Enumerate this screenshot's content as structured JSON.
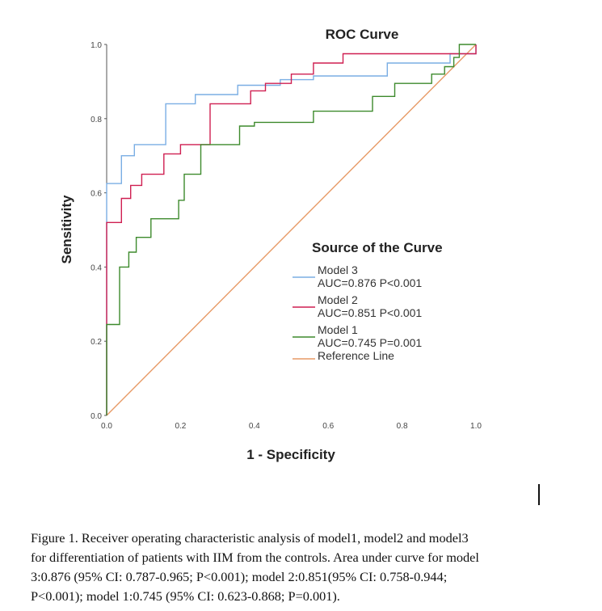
{
  "chart_data": {
    "type": "line",
    "title": "ROC Curve",
    "xlabel": "1 - Specificity",
    "ylabel": "Sensitivity",
    "xlim": [
      0,
      1
    ],
    "ylim": [
      0,
      1
    ],
    "xticks": [
      "0.0",
      "0.2",
      "0.4",
      "0.6",
      "0.8",
      "1.0"
    ],
    "yticks": [
      "0.0",
      "0.2",
      "0.4",
      "0.6",
      "0.8",
      "1.0"
    ],
    "legend_title": "Source of the Curve",
    "legend_position": "center-right",
    "series": [
      {
        "name": "Model 3",
        "label": "Model 3",
        "auc_label": "AUC=0.876 P<0.001",
        "color": "#7aaee4",
        "points": [
          [
            0,
            0
          ],
          [
            0,
            0.625
          ],
          [
            0.04,
            0.625
          ],
          [
            0.04,
            0.7
          ],
          [
            0.075,
            0.7
          ],
          [
            0.075,
            0.73
          ],
          [
            0.16,
            0.73
          ],
          [
            0.16,
            0.84
          ],
          [
            0.24,
            0.84
          ],
          [
            0.24,
            0.865
          ],
          [
            0.355,
            0.865
          ],
          [
            0.355,
            0.89
          ],
          [
            0.47,
            0.89
          ],
          [
            0.47,
            0.905
          ],
          [
            0.56,
            0.905
          ],
          [
            0.56,
            0.915
          ],
          [
            0.76,
            0.915
          ],
          [
            0.76,
            0.95
          ],
          [
            0.93,
            0.95
          ],
          [
            0.93,
            0.975
          ],
          [
            1,
            0.975
          ],
          [
            1,
            1
          ]
        ]
      },
      {
        "name": "Model 2",
        "label": "Model 2",
        "auc_label": "AUC=0.851 P<0.001",
        "color": "#cf1f51",
        "points": [
          [
            0,
            0
          ],
          [
            0,
            0.52
          ],
          [
            0.04,
            0.52
          ],
          [
            0.04,
            0.585
          ],
          [
            0.065,
            0.585
          ],
          [
            0.065,
            0.62
          ],
          [
            0.095,
            0.62
          ],
          [
            0.095,
            0.65
          ],
          [
            0.155,
            0.65
          ],
          [
            0.155,
            0.705
          ],
          [
            0.2,
            0.705
          ],
          [
            0.2,
            0.73
          ],
          [
            0.28,
            0.73
          ],
          [
            0.28,
            0.84
          ],
          [
            0.39,
            0.84
          ],
          [
            0.39,
            0.875
          ],
          [
            0.43,
            0.875
          ],
          [
            0.43,
            0.895
          ],
          [
            0.5,
            0.895
          ],
          [
            0.5,
            0.92
          ],
          [
            0.56,
            0.92
          ],
          [
            0.56,
            0.95
          ],
          [
            0.64,
            0.95
          ],
          [
            0.64,
            0.975
          ],
          [
            1,
            0.975
          ],
          [
            1,
            1
          ]
        ]
      },
      {
        "name": "Model 1",
        "label": "Model 1",
        "auc_label": "AUC=0.745 P=0.001",
        "color": "#3d8a2c",
        "points": [
          [
            0,
            0
          ],
          [
            0,
            0.245
          ],
          [
            0.035,
            0.245
          ],
          [
            0.035,
            0.4
          ],
          [
            0.06,
            0.4
          ],
          [
            0.06,
            0.44
          ],
          [
            0.08,
            0.44
          ],
          [
            0.08,
            0.48
          ],
          [
            0.12,
            0.48
          ],
          [
            0.12,
            0.53
          ],
          [
            0.195,
            0.53
          ],
          [
            0.195,
            0.58
          ],
          [
            0.21,
            0.58
          ],
          [
            0.21,
            0.65
          ],
          [
            0.255,
            0.65
          ],
          [
            0.255,
            0.73
          ],
          [
            0.36,
            0.73
          ],
          [
            0.36,
            0.78
          ],
          [
            0.4,
            0.78
          ],
          [
            0.4,
            0.79
          ],
          [
            0.56,
            0.79
          ],
          [
            0.56,
            0.82
          ],
          [
            0.72,
            0.82
          ],
          [
            0.72,
            0.86
          ],
          [
            0.78,
            0.86
          ],
          [
            0.78,
            0.895
          ],
          [
            0.88,
            0.895
          ],
          [
            0.88,
            0.92
          ],
          [
            0.915,
            0.92
          ],
          [
            0.915,
            0.94
          ],
          [
            0.94,
            0.94
          ],
          [
            0.94,
            0.965
          ],
          [
            0.955,
            0.965
          ],
          [
            0.955,
            1
          ],
          [
            1,
            1
          ]
        ]
      },
      {
        "name": "Reference Line",
        "label": "Reference Line",
        "auc_label": "",
        "color": "#e79a66",
        "points": [
          [
            0,
            0
          ],
          [
            1,
            1
          ]
        ]
      }
    ]
  },
  "caption": {
    "lines": [
      "Figure 1. Receiver operating characteristic analysis of model1, model2 and model3",
      "for differentiation of patients with IIM from the controls. Area under curve for model",
      "3:0.876 (95% CI: 0.787-0.965; P<0.001); model 2:0.851(95% CI: 0.758-0.944;",
      "P<0.001); model 1:0.745 (95% CI: 0.623-0.868; P=0.001)."
    ]
  }
}
